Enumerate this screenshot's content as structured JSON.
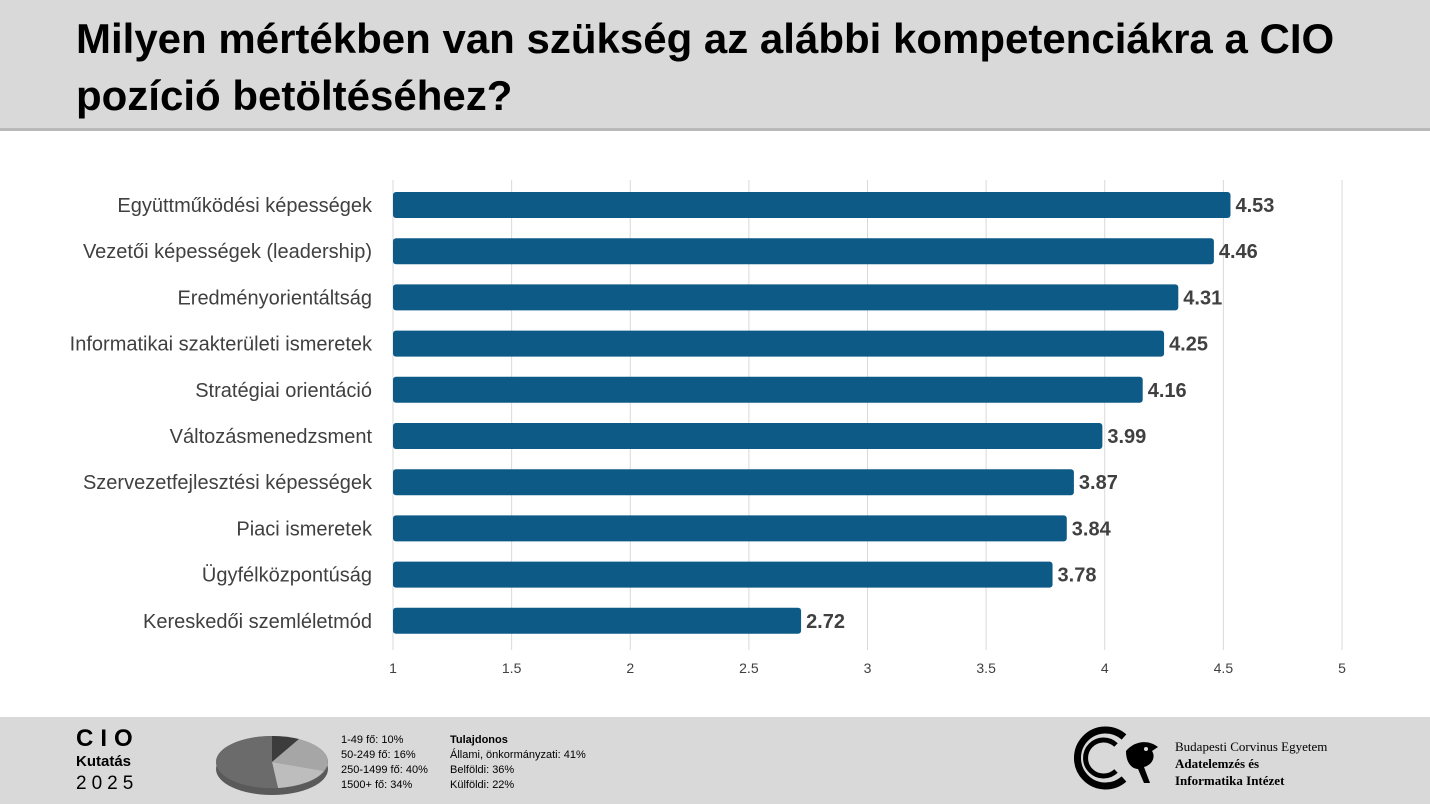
{
  "title": "Milyen mértékben van szükség az alábbi kompetenciákra a CIO pozíció betöltéséhez?",
  "chart_data": {
    "type": "bar",
    "orientation": "horizontal",
    "categories": [
      "Együttműködési képességek",
      "Vezetői képességek (leadership)",
      "Eredményorientáltság",
      "Informatikai szakterületi ismeretek",
      "Stratégiai orientáció",
      "Változásmenedzsment",
      "Szervezetfejlesztési képességek",
      "Piaci ismeretek",
      "Ügyfélközpontúság",
      "Kereskedői szemléletmód"
    ],
    "values": [
      4.53,
      4.46,
      4.31,
      4.25,
      4.16,
      3.99,
      3.87,
      3.84,
      3.78,
      2.72
    ],
    "value_labels": [
      "4.53",
      "4.46",
      "4.31",
      "4.25",
      "4.16",
      "3.99",
      "3.87",
      "3.84",
      "3.78",
      "2.72"
    ],
    "xlim": [
      1,
      5
    ],
    "xticks": [
      "1",
      "1.5",
      "2",
      "2.5",
      "3",
      "3.5",
      "4",
      "4.5",
      "5"
    ],
    "grid": true,
    "bar_color": "#0d5a87"
  },
  "footer": {
    "brand": {
      "line1": "CIO",
      "line2": "Kutatás",
      "line3": "2025"
    },
    "sizes": [
      "1-49 fő: 10%",
      "50-249 fő: 16%",
      "250-1499 fő: 40%",
      "1500+ fő: 34%"
    ],
    "size_shares": [
      10,
      16,
      40,
      34
    ],
    "owners": {
      "heading": "Tulajdonos",
      "items": [
        "Állami, önkormányzati: 41%",
        "Belföldi: 36%",
        "Külföldi: 22%"
      ]
    },
    "university": {
      "line1": "Budapesti Corvinus Egyetem",
      "line2": "Adatelemzés és",
      "line3": "Informatika Intézet"
    }
  }
}
